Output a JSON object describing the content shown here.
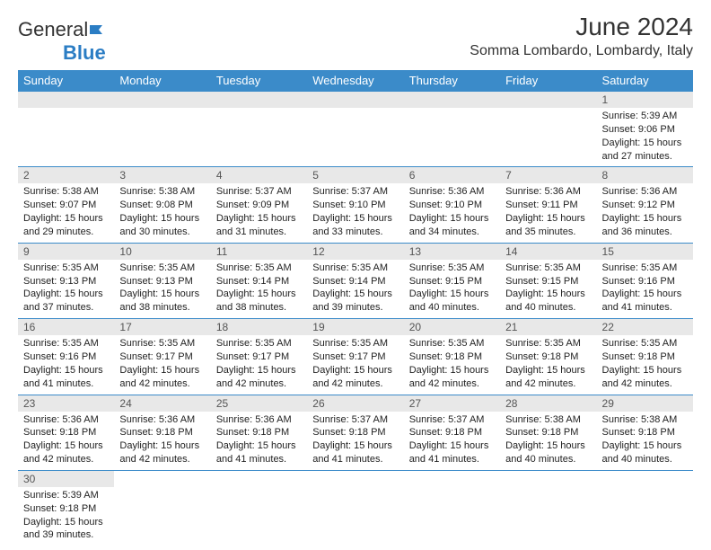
{
  "brand": {
    "name1": "General",
    "name2": "Blue"
  },
  "title": "June 2024",
  "location": "Somma Lombardo, Lombardy, Italy",
  "colors": {
    "header_bg": "#3b8bc9",
    "header_text": "#ffffff",
    "daynum_bg": "#e8e8e8",
    "border": "#3b8bc9",
    "brand_blue": "#2b7dc4"
  },
  "weekdays": [
    "Sunday",
    "Monday",
    "Tuesday",
    "Wednesday",
    "Thursday",
    "Friday",
    "Saturday"
  ],
  "labels": {
    "sunrise": "Sunrise:",
    "sunset": "Sunset:",
    "daylight": "Daylight:"
  },
  "weeks": [
    [
      null,
      null,
      null,
      null,
      null,
      null,
      {
        "n": "1",
        "sr": "5:39 AM",
        "ss": "9:06 PM",
        "dl": "15 hours and 27 minutes."
      }
    ],
    [
      {
        "n": "2",
        "sr": "5:38 AM",
        "ss": "9:07 PM",
        "dl": "15 hours and 29 minutes."
      },
      {
        "n": "3",
        "sr": "5:38 AM",
        "ss": "9:08 PM",
        "dl": "15 hours and 30 minutes."
      },
      {
        "n": "4",
        "sr": "5:37 AM",
        "ss": "9:09 PM",
        "dl": "15 hours and 31 minutes."
      },
      {
        "n": "5",
        "sr": "5:37 AM",
        "ss": "9:10 PM",
        "dl": "15 hours and 33 minutes."
      },
      {
        "n": "6",
        "sr": "5:36 AM",
        "ss": "9:10 PM",
        "dl": "15 hours and 34 minutes."
      },
      {
        "n": "7",
        "sr": "5:36 AM",
        "ss": "9:11 PM",
        "dl": "15 hours and 35 minutes."
      },
      {
        "n": "8",
        "sr": "5:36 AM",
        "ss": "9:12 PM",
        "dl": "15 hours and 36 minutes."
      }
    ],
    [
      {
        "n": "9",
        "sr": "5:35 AM",
        "ss": "9:13 PM",
        "dl": "15 hours and 37 minutes."
      },
      {
        "n": "10",
        "sr": "5:35 AM",
        "ss": "9:13 PM",
        "dl": "15 hours and 38 minutes."
      },
      {
        "n": "11",
        "sr": "5:35 AM",
        "ss": "9:14 PM",
        "dl": "15 hours and 38 minutes."
      },
      {
        "n": "12",
        "sr": "5:35 AM",
        "ss": "9:14 PM",
        "dl": "15 hours and 39 minutes."
      },
      {
        "n": "13",
        "sr": "5:35 AM",
        "ss": "9:15 PM",
        "dl": "15 hours and 40 minutes."
      },
      {
        "n": "14",
        "sr": "5:35 AM",
        "ss": "9:15 PM",
        "dl": "15 hours and 40 minutes."
      },
      {
        "n": "15",
        "sr": "5:35 AM",
        "ss": "9:16 PM",
        "dl": "15 hours and 41 minutes."
      }
    ],
    [
      {
        "n": "16",
        "sr": "5:35 AM",
        "ss": "9:16 PM",
        "dl": "15 hours and 41 minutes."
      },
      {
        "n": "17",
        "sr": "5:35 AM",
        "ss": "9:17 PM",
        "dl": "15 hours and 42 minutes."
      },
      {
        "n": "18",
        "sr": "5:35 AM",
        "ss": "9:17 PM",
        "dl": "15 hours and 42 minutes."
      },
      {
        "n": "19",
        "sr": "5:35 AM",
        "ss": "9:17 PM",
        "dl": "15 hours and 42 minutes."
      },
      {
        "n": "20",
        "sr": "5:35 AM",
        "ss": "9:18 PM",
        "dl": "15 hours and 42 minutes."
      },
      {
        "n": "21",
        "sr": "5:35 AM",
        "ss": "9:18 PM",
        "dl": "15 hours and 42 minutes."
      },
      {
        "n": "22",
        "sr": "5:35 AM",
        "ss": "9:18 PM",
        "dl": "15 hours and 42 minutes."
      }
    ],
    [
      {
        "n": "23",
        "sr": "5:36 AM",
        "ss": "9:18 PM",
        "dl": "15 hours and 42 minutes."
      },
      {
        "n": "24",
        "sr": "5:36 AM",
        "ss": "9:18 PM",
        "dl": "15 hours and 42 minutes."
      },
      {
        "n": "25",
        "sr": "5:36 AM",
        "ss": "9:18 PM",
        "dl": "15 hours and 41 minutes."
      },
      {
        "n": "26",
        "sr": "5:37 AM",
        "ss": "9:18 PM",
        "dl": "15 hours and 41 minutes."
      },
      {
        "n": "27",
        "sr": "5:37 AM",
        "ss": "9:18 PM",
        "dl": "15 hours and 41 minutes."
      },
      {
        "n": "28",
        "sr": "5:38 AM",
        "ss": "9:18 PM",
        "dl": "15 hours and 40 minutes."
      },
      {
        "n": "29",
        "sr": "5:38 AM",
        "ss": "9:18 PM",
        "dl": "15 hours and 40 minutes."
      }
    ],
    [
      {
        "n": "30",
        "sr": "5:39 AM",
        "ss": "9:18 PM",
        "dl": "15 hours and 39 minutes."
      },
      null,
      null,
      null,
      null,
      null,
      null
    ]
  ]
}
